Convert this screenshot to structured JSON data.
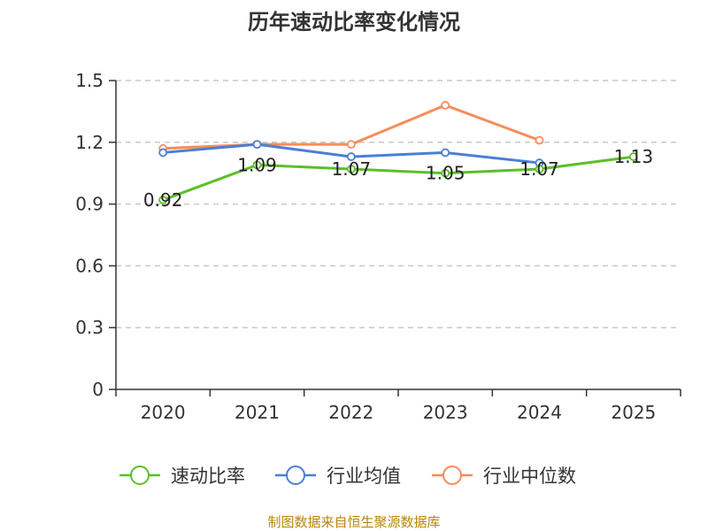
{
  "chart_data": {
    "type": "line",
    "title": "历年速动比率变化情况",
    "categories": [
      "2020",
      "2021",
      "2022",
      "2023",
      "2024",
      "2025"
    ],
    "ylim": [
      0,
      1.5
    ],
    "yticks": [
      0,
      0.3,
      0.6,
      0.9,
      1.2,
      1.5
    ],
    "ytick_labels": [
      "0",
      "0.3",
      "0.6",
      "0.9",
      "1.2",
      "1.5"
    ],
    "grid": true,
    "legend_position": "bottom",
    "series": [
      {
        "name": "速动比率",
        "color": "#5cbf2a",
        "values": [
          0.92,
          1.09,
          1.07,
          1.05,
          1.07,
          1.13
        ],
        "labels": [
          "0.92",
          "1.09",
          "1.07",
          "1.05",
          "1.07",
          "1.13"
        ]
      },
      {
        "name": "行业均值",
        "color": "#4a7fd6",
        "values": [
          1.15,
          1.19,
          1.13,
          1.15,
          1.1,
          null
        ]
      },
      {
        "name": "行业中位数",
        "color": "#f58d5a",
        "values": [
          1.17,
          1.19,
          1.19,
          1.38,
          1.21,
          null
        ]
      }
    ]
  },
  "source_text": "制图数据来自恒生聚源数据库"
}
